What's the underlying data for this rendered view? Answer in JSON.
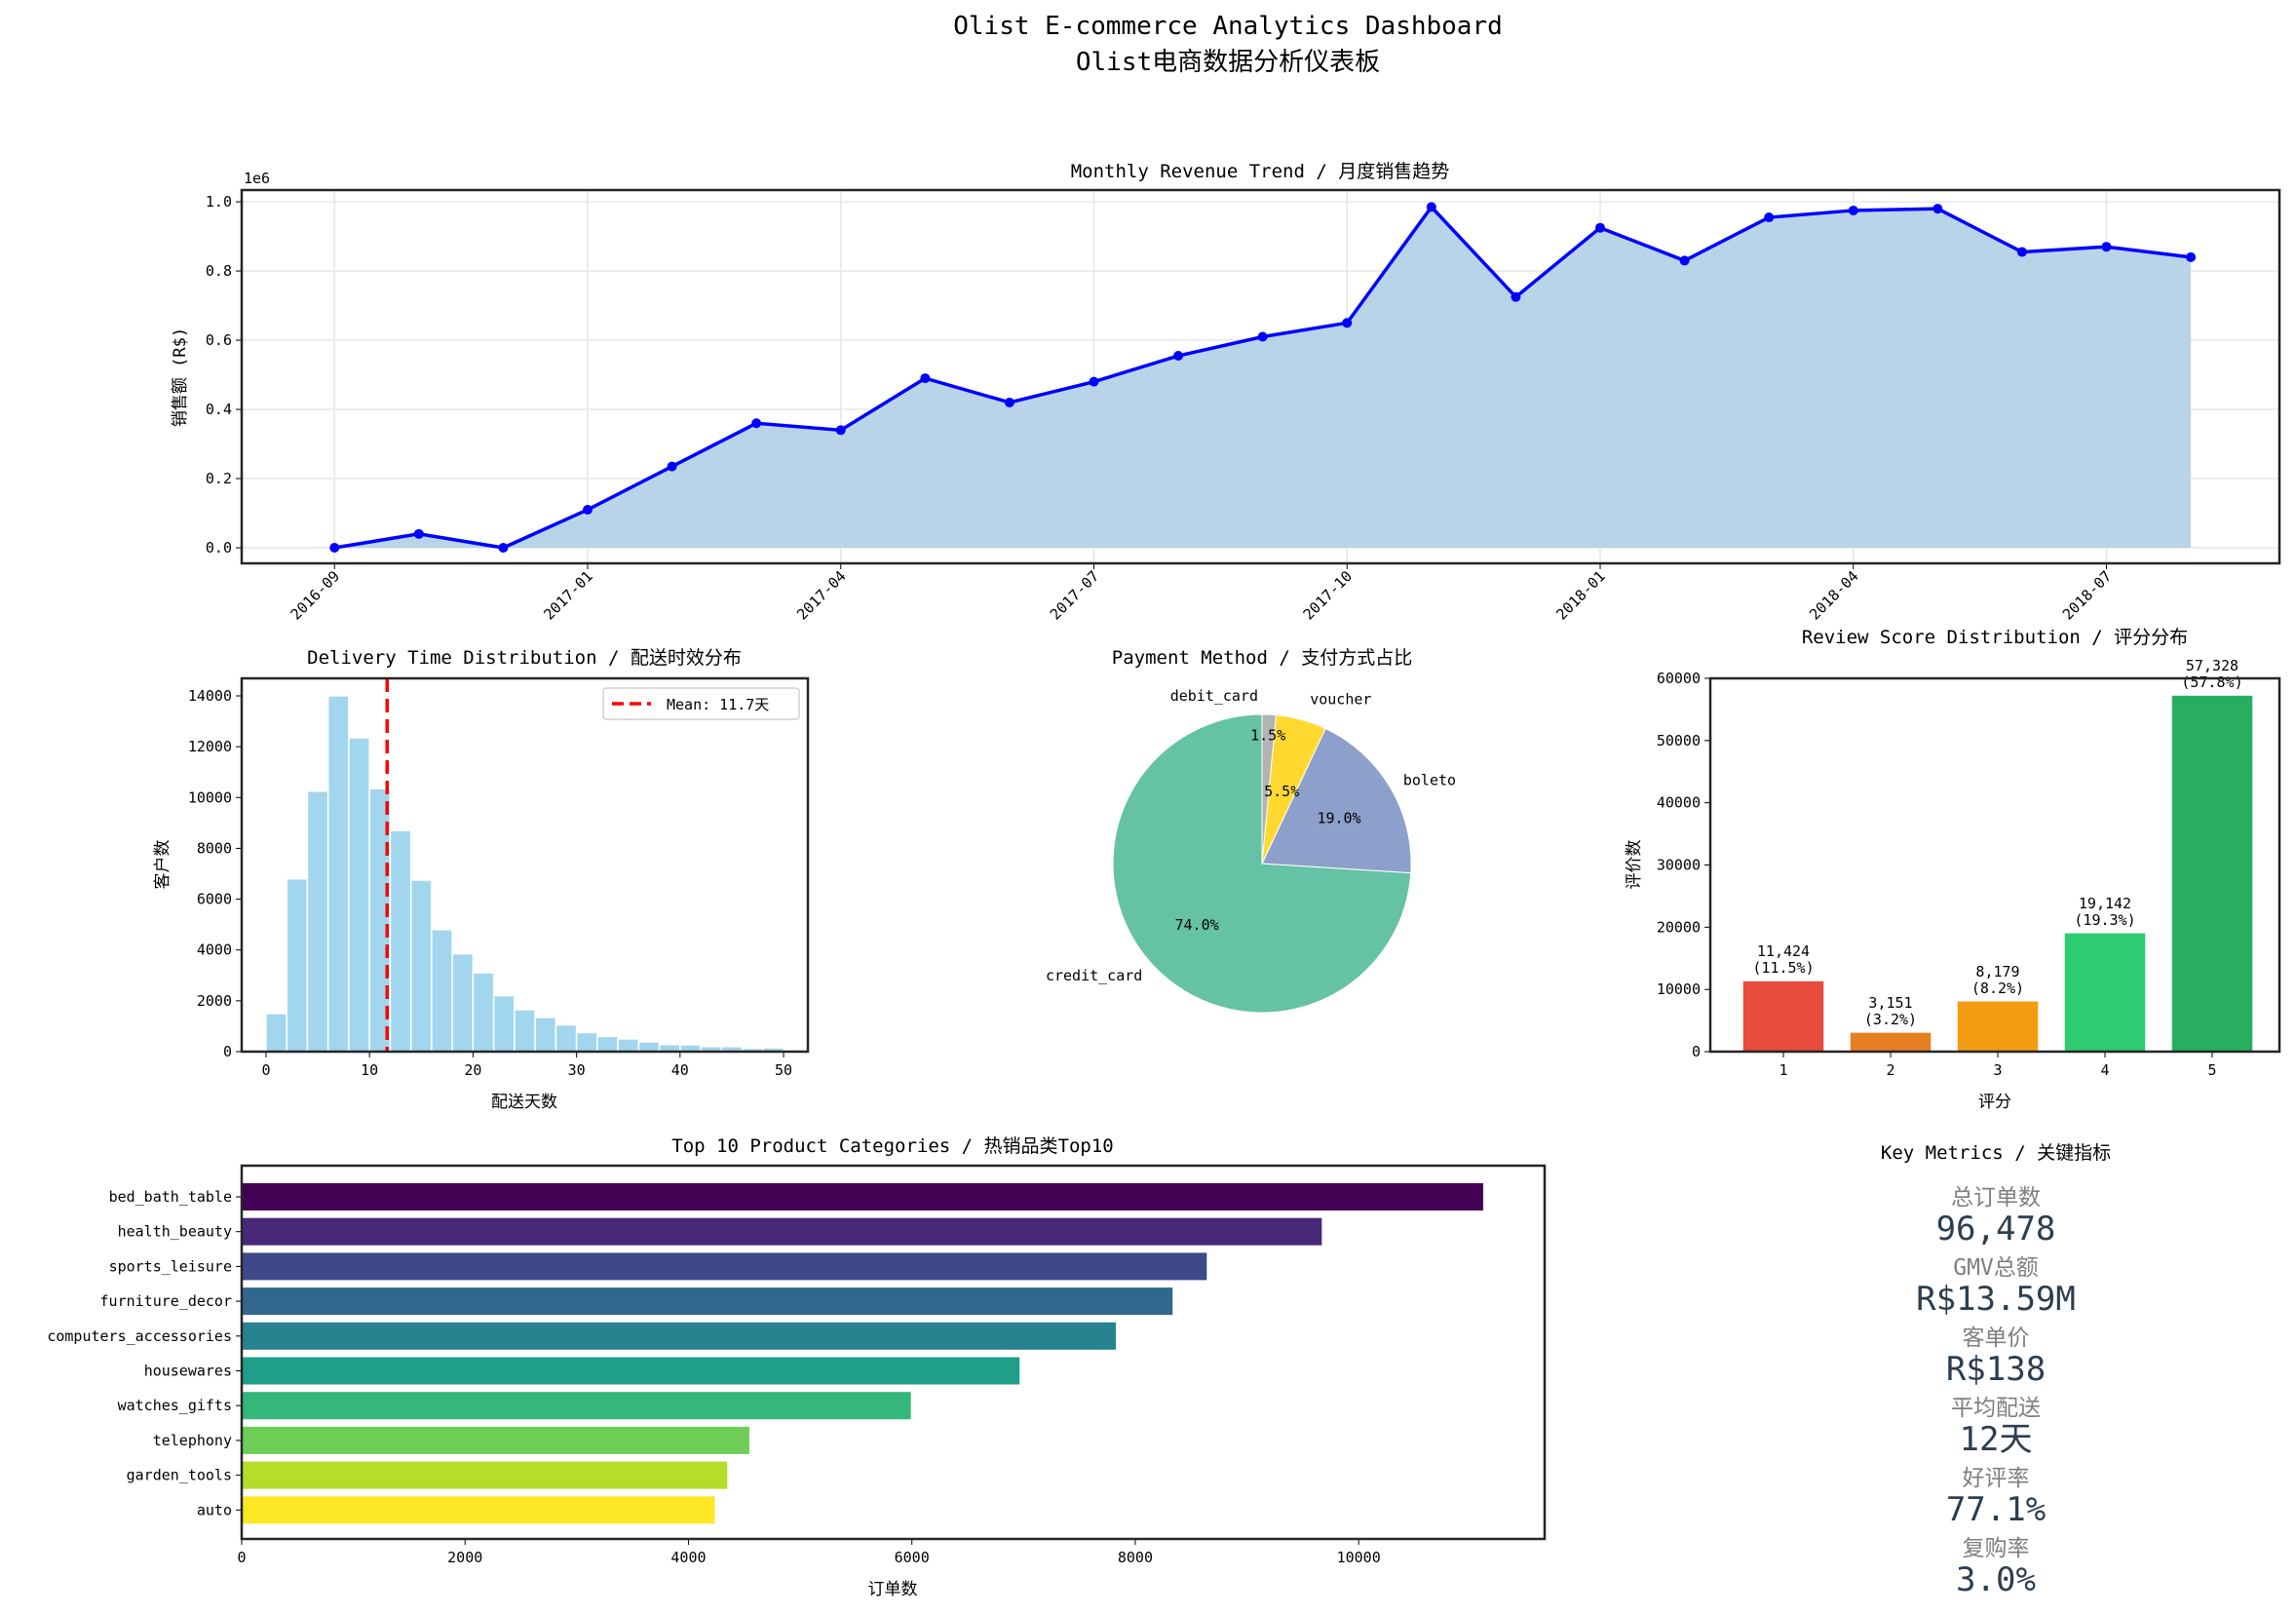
{
  "dashboard": {
    "title_en": "Olist E-commerce Analytics Dashboard",
    "title_cn": "Olist电商数据分析仪表板"
  },
  "chart_data": [
    {
      "type": "area",
      "title": "Monthly Revenue Trend / 月度销售趋势",
      "ylabel": "销售额 (R$)",
      "y_offset_label": "1e6",
      "x": [
        "2016-09",
        "2016-10",
        "2016-12",
        "2017-01",
        "2017-02",
        "2017-03",
        "2017-04",
        "2017-05",
        "2017-06",
        "2017-07",
        "2017-08",
        "2017-09",
        "2017-10",
        "2017-11",
        "2017-12",
        "2018-01",
        "2018-02",
        "2018-03",
        "2018-04",
        "2018-05",
        "2018-06",
        "2018-07",
        "2018-08"
      ],
      "values": [
        0.0,
        0.04,
        0.0,
        0.11,
        0.235,
        0.36,
        0.34,
        0.49,
        0.42,
        0.48,
        0.555,
        0.61,
        0.65,
        0.985,
        0.725,
        0.925,
        0.83,
        0.955,
        0.975,
        0.98,
        0.855,
        0.87,
        0.84
      ],
      "xticks": [
        "2016-09",
        "2017-01",
        "2017-04",
        "2017-07",
        "2017-10",
        "2018-01",
        "2018-04",
        "2018-07"
      ],
      "yticks": [
        "0.0",
        "0.2",
        "0.4",
        "0.6",
        "0.8",
        "1.0"
      ],
      "ylim": [
        -0.045,
        1.034
      ],
      "line_color": "#0000ff",
      "fill_color": "#b9d4e8",
      "grid": true
    },
    {
      "type": "bar",
      "subtype": "histogram",
      "title": "Delivery Time Distribution / 配送时效分布",
      "xlabel": "配送天数",
      "ylabel": "客户数",
      "bin_width": 2,
      "bin_start": 0,
      "values": [
        1500,
        6800,
        10250,
        14000,
        12350,
        10350,
        8700,
        6750,
        4800,
        3850,
        3100,
        2200,
        1650,
        1350,
        1050,
        750,
        600,
        500,
        380,
        280,
        270,
        200,
        200,
        130,
        150
      ],
      "xticks": [
        "0",
        "10",
        "20",
        "30",
        "40",
        "50"
      ],
      "yticks": [
        "0",
        "2000",
        "4000",
        "6000",
        "8000",
        "10000",
        "12000",
        "14000"
      ],
      "ylim": [
        0,
        14690
      ],
      "xlim": [
        -2.35,
        52.35
      ],
      "mean": 11.7,
      "legend": "Mean: 11.7天",
      "legend_position": "top-right",
      "bar_color": "#a1d6ee",
      "mean_color": "#ff0000"
    },
    {
      "type": "pie",
      "title": "Payment Method / 支付方式占比",
      "labels": [
        "credit_card",
        "boleto",
        "voucher",
        "debit_card"
      ],
      "values": [
        74.0,
        19.0,
        5.5,
        1.5
      ],
      "pct_labels": [
        "74.0%",
        "19.0%",
        "5.5%",
        "1.5%"
      ],
      "colors": [
        "#66c2a5",
        "#8da0cb",
        "#ffd92f",
        "#b3b3b3"
      ],
      "start_angle": 90
    },
    {
      "type": "bar",
      "title": "Review Score Distribution / 评分分布",
      "xlabel": "评分",
      "ylabel": "评价数",
      "categories": [
        "1",
        "2",
        "3",
        "4",
        "5"
      ],
      "values": [
        11424,
        3151,
        8179,
        19142,
        57328
      ],
      "value_labels": [
        "11,424",
        "3,151",
        "8,179",
        "19,142",
        "57,328"
      ],
      "pct_labels": [
        "(11.5%)",
        "(3.2%)",
        "(8.2%)",
        "(19.3%)",
        "(57.8%)"
      ],
      "yticks": [
        "0",
        "10000",
        "20000",
        "30000",
        "40000",
        "50000",
        "60000"
      ],
      "ylim": [
        0,
        60000
      ],
      "colors": [
        "#e74c3c",
        "#e67e22",
        "#f39c12",
        "#2ecc71",
        "#27ae60"
      ]
    },
    {
      "type": "bar",
      "orientation": "horizontal",
      "title": "Top 10 Product Categories / 热销品类Top10",
      "xlabel": "订单数",
      "categories": [
        "bed_bath_table",
        "health_beauty",
        "sports_leisure",
        "furniture_decor",
        "computers_accessories",
        "housewares",
        "watches_gifts",
        "telephony",
        "garden_tools",
        "auto"
      ],
      "values": [
        11115,
        9670,
        8640,
        8334,
        7827,
        6964,
        5991,
        4545,
        4347,
        4235
      ],
      "xticks": [
        "0",
        "2000",
        "4000",
        "6000",
        "8000",
        "10000"
      ],
      "xlim": [
        0,
        11665
      ],
      "colors": [
        "#440154",
        "#482878",
        "#3e4989",
        "#31688e",
        "#26828e",
        "#1f9e89",
        "#35b779",
        "#6ece58",
        "#b5de2b",
        "#fde725"
      ]
    }
  ],
  "key_metrics": {
    "title": "Key Metrics / 关键指标",
    "label_color": "#7f7f7f",
    "value_color": "#2c3e50",
    "items": [
      {
        "label": "总订单数",
        "value": "96,478"
      },
      {
        "label": "GMV总额",
        "value": "R$13.59M"
      },
      {
        "label": "客单价",
        "value": "R$138"
      },
      {
        "label": "平均配送",
        "value": "12天"
      },
      {
        "label": "好评率",
        "value": "77.1%"
      },
      {
        "label": "复购率",
        "value": "3.0%"
      }
    ]
  }
}
